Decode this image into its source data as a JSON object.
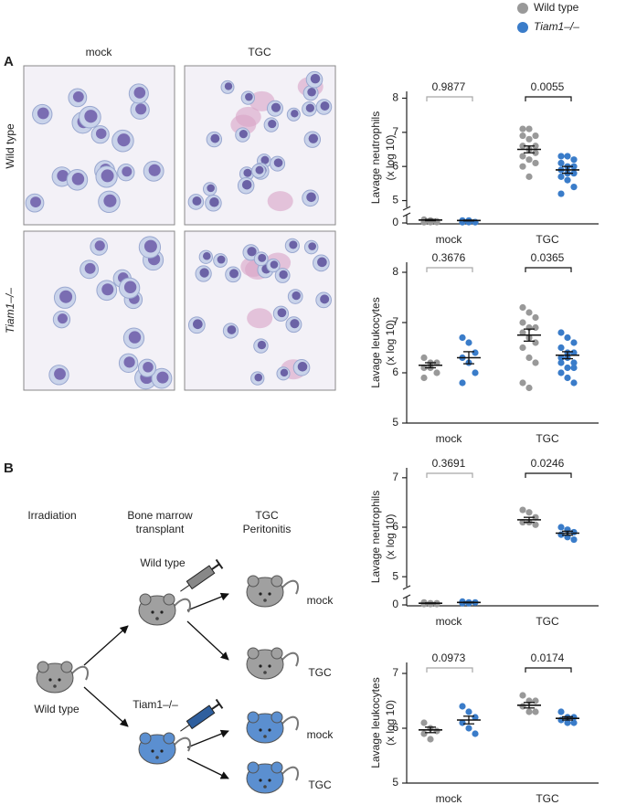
{
  "panel_labels": [
    "A",
    "B"
  ],
  "micrographs": {
    "columns": [
      "mock",
      "TGC"
    ],
    "rows": [
      "Wild type",
      "Tiam1–/–"
    ]
  },
  "diagram": {
    "steps": [
      [
        "Irradiation"
      ],
      [
        "Bone marrow",
        "transplant"
      ],
      [
        "TGC",
        "Peritonitis"
      ]
    ],
    "donor": "Wild type",
    "syringes": [
      "Wild type",
      "Tiam1–/–"
    ],
    "outcomes": [
      "mock",
      "TGC",
      "mock",
      "TGC"
    ]
  },
  "chart_data": [
    {
      "type": "dotplot",
      "y_label": [
        "Lavage neutrophils",
        "(x log 10)"
      ],
      "categories": [
        "mock",
        "TGC"
      ],
      "ylim": [
        4.8,
        8.2
      ],
      "yticks": [
        5,
        6,
        7,
        8
      ],
      "ylim_lower": [
        0,
        1
      ],
      "yticks_lower": [
        0
      ],
      "series": [
        {
          "name": "Wild type",
          "color": "#999999",
          "values": [
            [
              0.4,
              0.3,
              0.2,
              0.1,
              0.1,
              0.1,
              0.1
            ],
            [
              7.1,
              7.1,
              6.9,
              6.9,
              6.8,
              6.6,
              6.6,
              6.5,
              6.4,
              6.3,
              6.2,
              6.1,
              6.0,
              5.7
            ]
          ],
          "mean": [
            0.35,
            6.5
          ],
          "sem": [
            0.08,
            0.1
          ]
        },
        {
          "name": "Tiam1–/–",
          "color": "#3a7cc9",
          "values": [
            [
              0.3,
              0.3,
              0.1,
              0.1,
              0.1,
              0.1,
              0.1
            ],
            [
              6.3,
              6.3,
              6.2,
              6.1,
              6.0,
              6.0,
              5.9,
              5.8,
              5.8,
              5.7,
              5.6,
              5.4,
              5.2
            ]
          ],
          "mean": [
            0.3,
            5.9
          ],
          "sem": [
            0.05,
            0.1
          ]
        }
      ],
      "p_values": [
        0.9877,
        0.0055
      ],
      "p_colors": [
        "#a6a6a6",
        "#111111"
      ]
    },
    {
      "type": "dotplot",
      "y_label": [
        "Lavage leukocytes",
        "(x log 10)"
      ],
      "categories": [
        "mock",
        "TGC"
      ],
      "ylim": [
        5,
        8.2
      ],
      "yticks": [
        5,
        6,
        7,
        8
      ],
      "series": [
        {
          "name": "Wild type",
          "color": "#999999",
          "values": [
            [
              6.3,
              6.2,
              6.2,
              6.1,
              6.1,
              6.0,
              5.9
            ],
            [
              7.3,
              7.2,
              7.1,
              7.0,
              6.9,
              6.9,
              6.8,
              6.7,
              6.6,
              6.5,
              6.3,
              6.2,
              5.8,
              5.7
            ]
          ],
          "mean": [
            6.15,
            6.75
          ],
          "sem": [
            0.05,
            0.12
          ]
        },
        {
          "name": "Tiam1–/–",
          "color": "#3a7cc9",
          "values": [
            [
              6.7,
              6.6,
              6.4,
              6.3,
              6.2,
              6.0,
              5.8
            ],
            [
              6.8,
              6.7,
              6.6,
              6.5,
              6.4,
              6.4,
              6.3,
              6.3,
              6.2,
              6.2,
              6.1,
              6.1,
              6.0,
              5.9,
              5.8
            ]
          ],
          "mean": [
            6.3,
            6.35
          ],
          "sem": [
            0.12,
            0.07
          ]
        }
      ],
      "p_values": [
        0.3676,
        0.0365
      ],
      "p_colors": [
        "#a6a6a6",
        "#111111"
      ]
    },
    {
      "type": "dotplot",
      "y_label": [
        "Lavage neutrophils",
        "(x log 10)"
      ],
      "categories": [
        "mock",
        "TGC"
      ],
      "ylim": [
        4.8,
        7.2
      ],
      "yticks": [
        5,
        6,
        7
      ],
      "ylim_lower": [
        0,
        1
      ],
      "yticks_lower": [
        0
      ],
      "series": [
        {
          "name": "Wild type",
          "color": "#999999",
          "values": [
            [
              0.3,
              0.2,
              0.2,
              0.1,
              0.1,
              0.1
            ],
            [
              6.35,
              6.3,
              6.2,
              6.1,
              6.1,
              6.05
            ]
          ],
          "mean": [
            0.2,
            6.15
          ],
          "sem": [
            0.04,
            0.05
          ]
        },
        {
          "name": "Tiam1–/–",
          "color": "#3a7cc9",
          "values": [
            [
              0.4,
              0.3,
              0.3,
              0.2,
              0.2
            ],
            [
              6.0,
              5.95,
              5.9,
              5.85,
              5.8,
              5.75
            ]
          ],
          "mean": [
            0.3,
            5.88
          ],
          "sem": [
            0.04,
            0.04
          ]
        }
      ],
      "p_values": [
        0.3691,
        0.0246
      ],
      "p_colors": [
        "#a6a6a6",
        "#111111"
      ]
    },
    {
      "type": "dotplot",
      "y_label": [
        "Lavage leukocytes",
        "(x log 10)"
      ],
      "categories": [
        "mock",
        "TGC"
      ],
      "ylim": [
        5,
        7.2
      ],
      "yticks": [
        5,
        6,
        7
      ],
      "series": [
        {
          "name": "Wild type",
          "color": "#999999",
          "values": [
            [
              6.1,
              6.0,
              5.95,
              5.9,
              5.8
            ],
            [
              6.6,
              6.5,
              6.5,
              6.4,
              6.3,
              6.3
            ]
          ],
          "mean": [
            5.97,
            6.42
          ],
          "sem": [
            0.05,
            0.05
          ]
        },
        {
          "name": "Tiam1–/–",
          "color": "#3a7cc9",
          "values": [
            [
              6.4,
              6.3,
              6.2,
              6.1,
              6.0,
              5.9
            ],
            [
              6.3,
              6.2,
              6.2,
              6.15,
              6.1,
              6.1
            ]
          ],
          "mean": [
            6.15,
            6.18
          ],
          "sem": [
            0.07,
            0.03
          ]
        }
      ],
      "p_values": [
        0.0973,
        0.0174
      ],
      "p_colors": [
        "#a6a6a6",
        "#111111"
      ]
    }
  ]
}
